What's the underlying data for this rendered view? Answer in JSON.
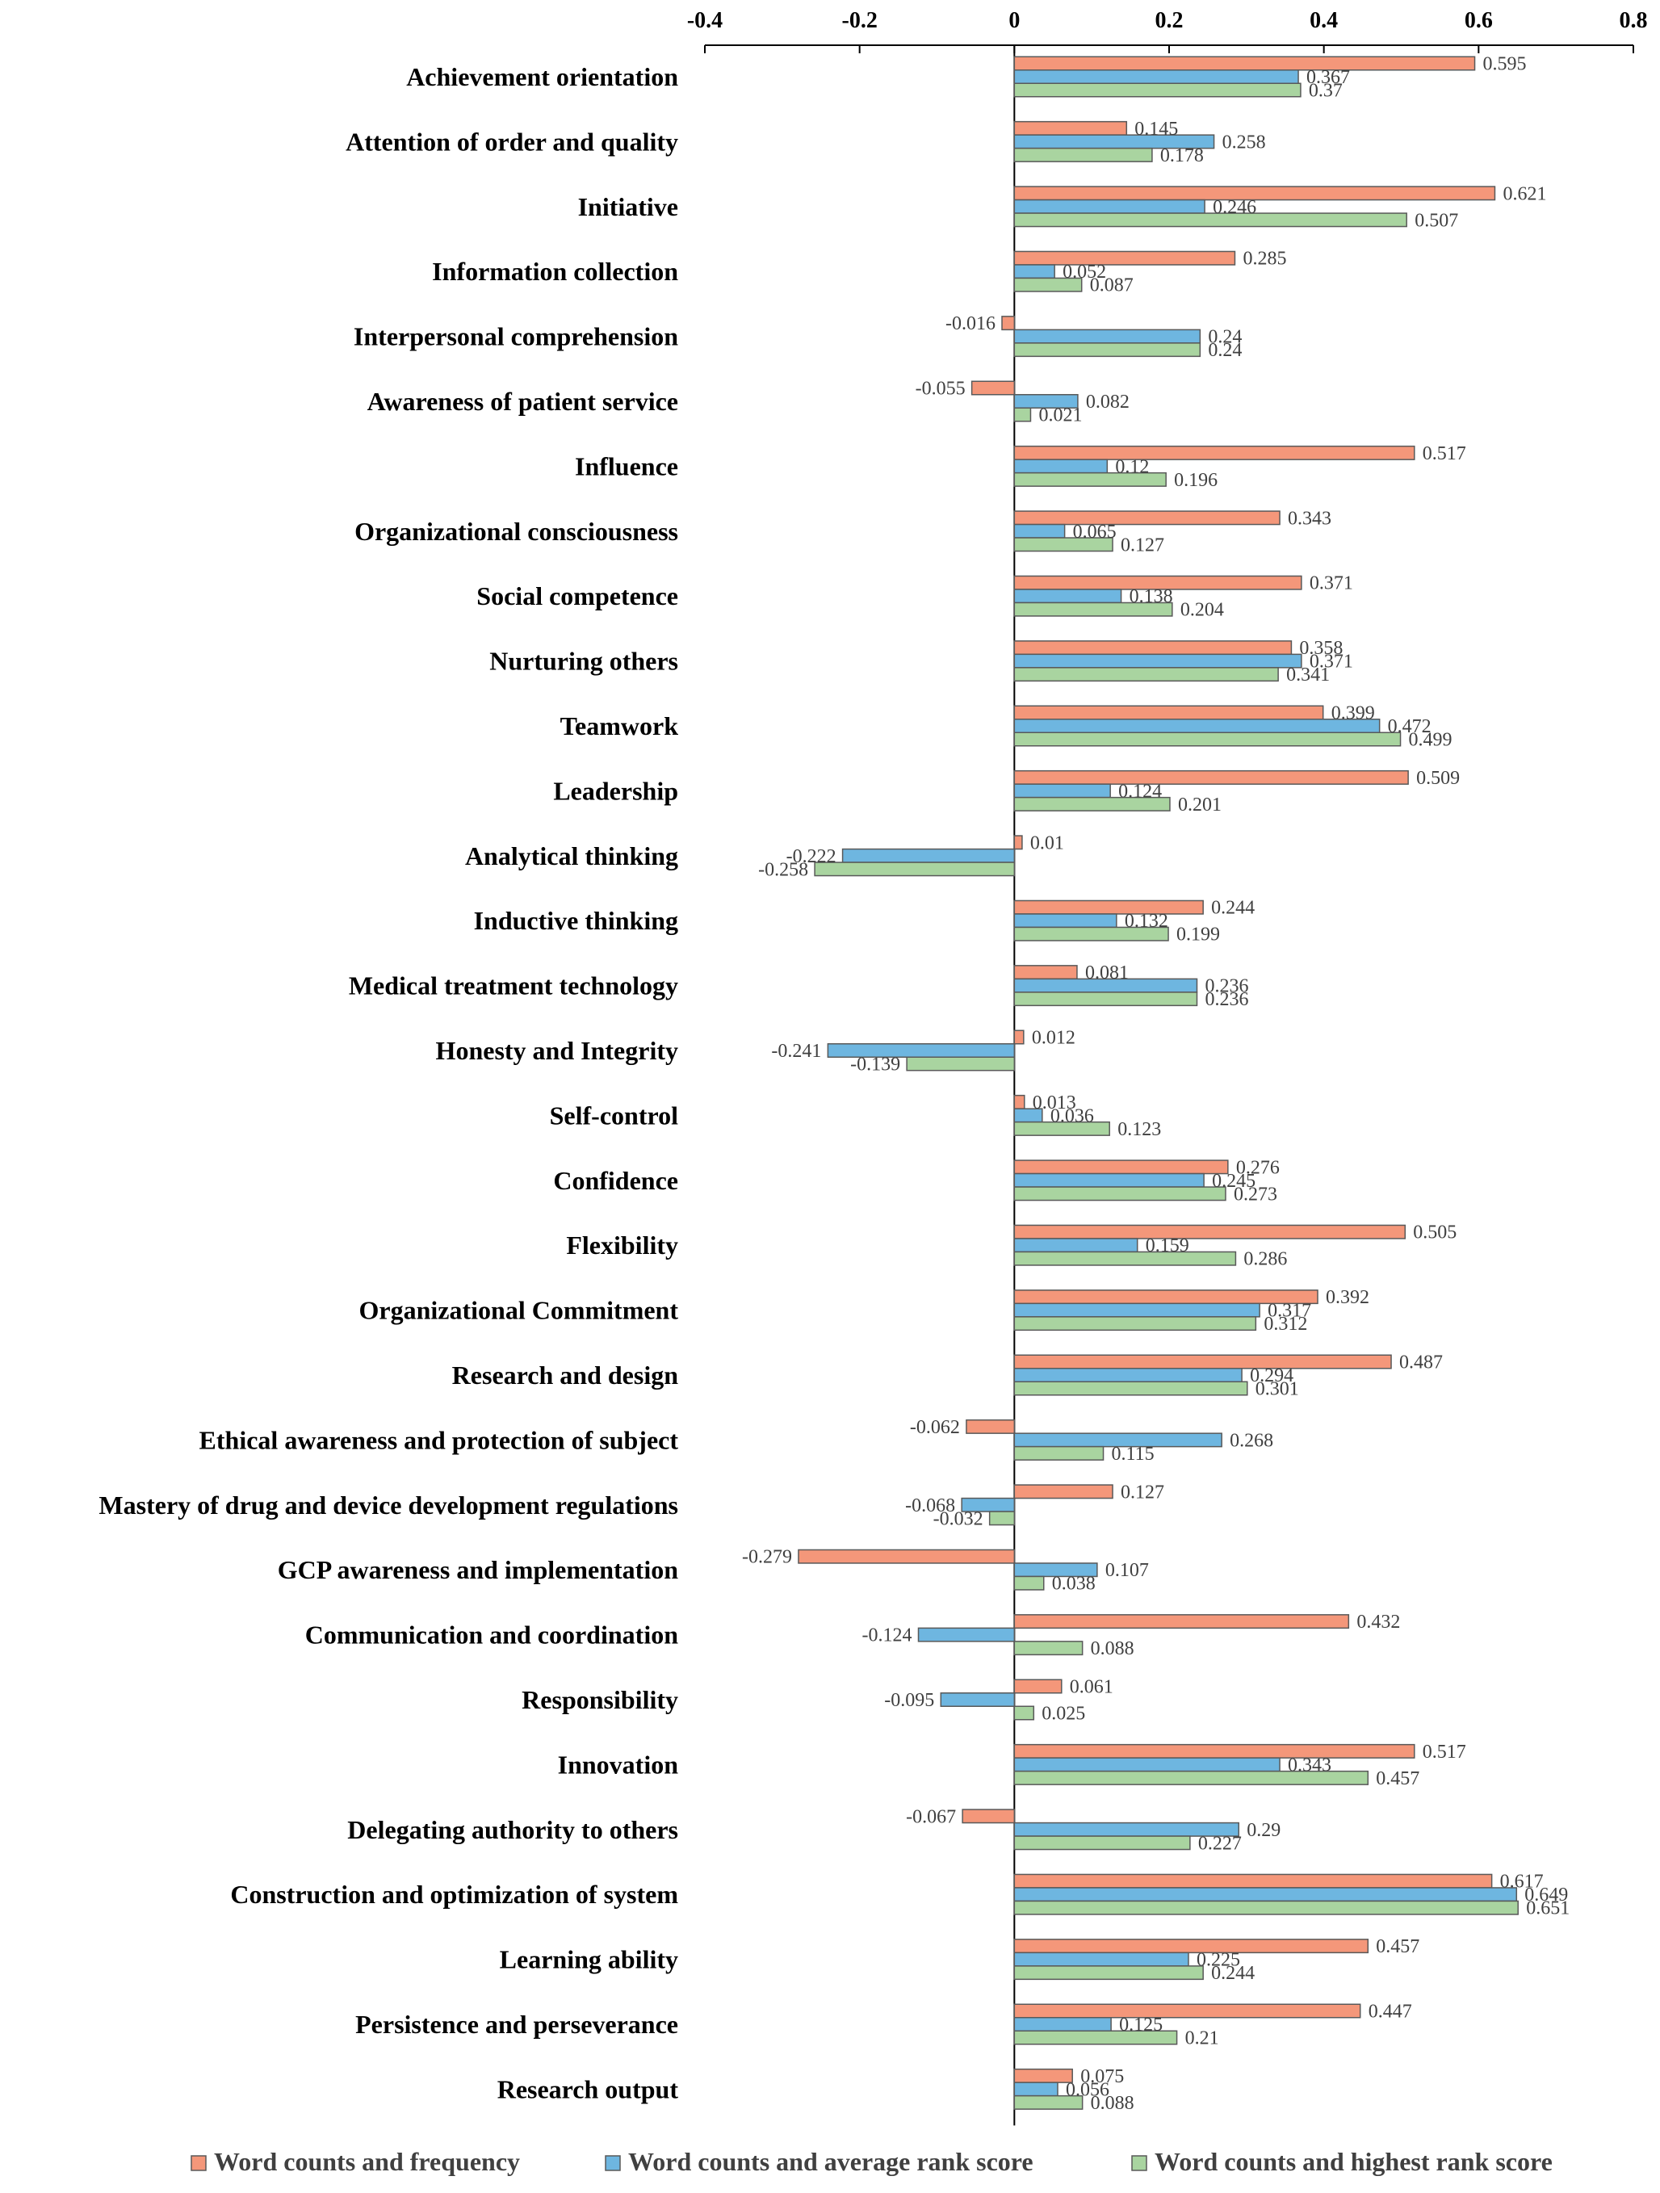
{
  "chart_data": {
    "type": "bar",
    "orientation": "horizontal",
    "title": "",
    "xlabel": "",
    "ylabel": "",
    "xlim": [
      -0.4,
      0.8
    ],
    "x_ticks": [
      "-0.4",
      "-0.2",
      "0",
      "0.2",
      "0.4",
      "0.6",
      "0.8"
    ],
    "x_tick_values": [
      -0.4,
      -0.2,
      0,
      0.2,
      0.4,
      0.6,
      0.8
    ],
    "axis_position": "top",
    "grid": false,
    "legend_position": "bottom",
    "categories": [
      "Achievement orientation",
      "Attention of order and quality",
      "Initiative",
      "Information collection",
      "Interpersonal comprehension",
      "Awareness of patient service",
      "Influence",
      "Organizational consciousness",
      "Social competence",
      "Nurturing others",
      "Teamwork",
      "Leadership",
      "Analytical thinking",
      "Inductive thinking",
      "Medical treatment technology",
      "Honesty and Integrity",
      "Self-control",
      "Confidence",
      "Flexibility",
      "Organizational Commitment",
      "Research and design",
      "Ethical awareness and protection of subject",
      "Mastery of drug and device development regulations",
      "GCP awareness and implementation",
      "Communication and coordination",
      "Responsibility",
      "Innovation",
      "Delegating authority to others",
      "Construction and optimization of system",
      "Learning ability",
      "Persistence and perseverance",
      "Research output"
    ],
    "series": [
      {
        "name": "Word counts and frequency",
        "color": "#F4977A",
        "values": [
          0.595,
          0.145,
          0.621,
          0.285,
          -0.016,
          -0.055,
          0.517,
          0.343,
          0.371,
          0.358,
          0.399,
          0.509,
          0.01,
          0.244,
          0.081,
          0.012,
          0.013,
          0.276,
          0.505,
          0.392,
          0.487,
          -0.062,
          0.127,
          -0.279,
          0.432,
          0.061,
          0.517,
          -0.067,
          0.617,
          0.457,
          0.447,
          0.075
        ],
        "labels": [
          "0.595",
          "0.145",
          "0.621",
          "0.285",
          "-0.016",
          "-0.055",
          "0.517",
          "0.343",
          "0.371",
          "0.358",
          "0.399",
          "0.509",
          "0.01",
          "0.244",
          "0.081",
          "0.012",
          "0.013",
          "0.276",
          "0.505",
          "0.392",
          "0.487",
          "-0.062",
          "0.127",
          "-0.279",
          "0.432",
          "0.061",
          "0.517",
          "-0.067",
          "0.617",
          "0.457",
          "0.447",
          "0.075"
        ]
      },
      {
        "name": "Word counts and average rank score",
        "color": "#6EB6E0",
        "values": [
          0.367,
          0.258,
          0.246,
          0.052,
          0.24,
          0.082,
          0.12,
          0.065,
          0.138,
          0.371,
          0.472,
          0.124,
          -0.222,
          0.132,
          0.236,
          -0.241,
          0.036,
          0.245,
          0.159,
          0.317,
          0.294,
          0.268,
          -0.068,
          0.107,
          -0.124,
          -0.095,
          0.343,
          0.29,
          0.649,
          0.225,
          0.125,
          0.056
        ],
        "labels": [
          "0.367",
          "0.258",
          "0.246",
          "0.052",
          "0.24",
          "0.082",
          "0.12",
          "0.065",
          "0.138",
          "0.371",
          "0.472",
          "0.124",
          "-0.222",
          "0.132",
          "0.236",
          "-0.241",
          "0.036",
          "0.245",
          "0.159",
          "0.317",
          "0.294",
          "0.268",
          "-0.068",
          "0.107",
          "-0.124",
          "-0.095",
          "0.343",
          "0.29",
          "0.649",
          "0.225",
          "0.125",
          "0.056"
        ]
      },
      {
        "name": "Word counts and highest rank score",
        "color": "#A9D4A0",
        "values": [
          0.37,
          0.178,
          0.507,
          0.087,
          0.24,
          0.021,
          0.196,
          0.127,
          0.204,
          0.341,
          0.499,
          0.201,
          -0.258,
          0.199,
          0.236,
          -0.139,
          0.123,
          0.273,
          0.286,
          0.312,
          0.301,
          0.115,
          -0.032,
          0.038,
          0.088,
          0.025,
          0.457,
          0.227,
          0.651,
          0.244,
          0.21,
          0.088
        ],
        "labels": [
          "0.37",
          "0.178",
          "0.507",
          "0.087",
          "0.24",
          "0.021",
          "0.196",
          "0.127",
          "0.204",
          "0.341",
          "0.499",
          "0.201",
          "-0.258",
          "0.199",
          "0.236",
          "-0.139",
          "0.123",
          "0.273",
          "0.286",
          "0.312",
          "0.301",
          "0.115",
          "-0.032",
          "0.038",
          "0.088",
          "0.025",
          "0.457",
          "0.227",
          "0.651",
          "0.244",
          "0.21",
          "0.088"
        ]
      }
    ]
  }
}
